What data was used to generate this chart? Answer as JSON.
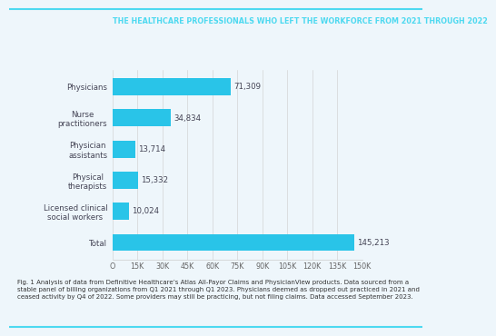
{
  "title": "THE HEALTHCARE PROFESSIONALS WHO LEFT THE WORKFORCE FROM 2021 THROUGH 2022",
  "title_color": "#4DD9F0",
  "title_fontsize": 5.8,
  "categories": [
    "Total",
    "Licensed clinical\nsocial workers",
    "Physical\ntherapists",
    "Physician\nassistants",
    "Nurse\npractitioners",
    "Physicians"
  ],
  "values": [
    145213,
    10024,
    15332,
    13714,
    34834,
    71309
  ],
  "value_labels": [
    "145,213",
    "10,024",
    "15,332",
    "13,714",
    "34,834",
    "71,309"
  ],
  "bar_color": "#29C4E8",
  "bar_height": 0.55,
  "xlim": [
    0,
    150000
  ],
  "xticks": [
    0,
    15000,
    30000,
    45000,
    60000,
    75000,
    90000,
    105000,
    120000,
    135000,
    150000
  ],
  "xtick_labels": [
    "O",
    "15K",
    "30K",
    "45K",
    "60K",
    "75K",
    "90K",
    "105K",
    "120K",
    "135K",
    "150K"
  ],
  "figure_bg": "#EEF6FB",
  "axes_bg": "#EEF6FB",
  "border_color": "#4DD9F0",
  "label_fontsize": 6.2,
  "value_fontsize": 6.2,
  "tick_fontsize": 5.8,
  "caption_fontsize": 5.0,
  "caption": "Fig. 1 Analysis of data from Definitive Healthcare’s Atlas All-Payor Claims and PhysicianView products. Data sourced from a\nstable panel of billing organizations from Q1 2021 through Q1 2023. Physicians deemed as dropped out practiced in 2021 and\nceased activity by Q4 of 2022. Some providers may still be practicing, but not filing claims. Data accessed September 2023.",
  "label_color": "#444455",
  "value_color": "#444455",
  "tick_color": "#666666"
}
